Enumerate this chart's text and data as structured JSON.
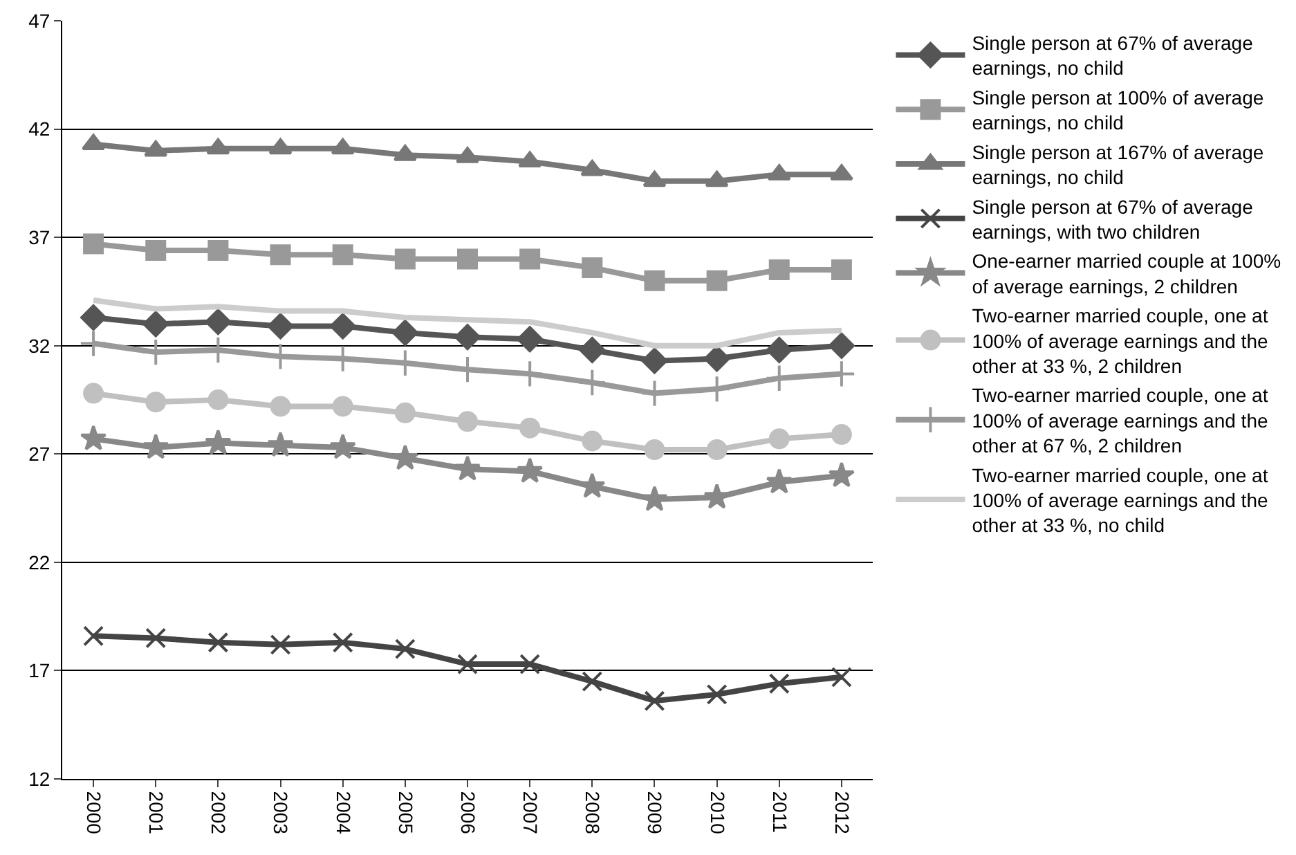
{
  "chart_data": {
    "type": "line",
    "categories": [
      "2000",
      "2001",
      "2002",
      "2003",
      "2004",
      "2005",
      "2006",
      "2007",
      "2008",
      "2009",
      "2010",
      "2011",
      "2012"
    ],
    "ylim": [
      12,
      47
    ],
    "yticks": [
      12,
      17,
      22,
      27,
      32,
      37,
      42,
      47
    ],
    "grid": "y",
    "legend": "right",
    "series": [
      {
        "name": "Single person at 67% of average earnings, no child",
        "color": "#555555",
        "marker": "diamond",
        "values": [
          33.3,
          33.0,
          33.1,
          32.9,
          32.9,
          32.6,
          32.4,
          32.3,
          31.8,
          31.3,
          31.4,
          31.8,
          32.0
        ]
      },
      {
        "name": "Single person at 100% of average earnings, no child",
        "color": "#999999",
        "marker": "square",
        "values": [
          36.7,
          36.4,
          36.4,
          36.2,
          36.2,
          36.0,
          36.0,
          36.0,
          35.6,
          35.0,
          35.0,
          35.5,
          35.5
        ]
      },
      {
        "name": "Single person at 167% of average earnings, no child",
        "color": "#777777",
        "marker": "triangle",
        "values": [
          41.3,
          41.0,
          41.1,
          41.1,
          41.1,
          40.8,
          40.7,
          40.5,
          40.1,
          39.6,
          39.6,
          39.9,
          39.9
        ]
      },
      {
        "name": "Single person at 67% of average earnings, with two children",
        "color": "#444444",
        "marker": "x",
        "values": [
          18.6,
          18.5,
          18.3,
          18.2,
          18.3,
          18.0,
          17.3,
          17.3,
          16.5,
          15.6,
          15.9,
          16.4,
          16.7
        ]
      },
      {
        "name": "One-earner married couple at 100% of average earnings, 2 children",
        "color": "#888888",
        "marker": "star",
        "values": [
          27.7,
          27.3,
          27.5,
          27.4,
          27.3,
          26.8,
          26.3,
          26.2,
          25.5,
          24.9,
          25.0,
          25.7,
          26.0
        ]
      },
      {
        "name": "Two-earner married couple, one at 100% of average earnings and the other at 33 %, 2 children",
        "color": "#c0c0c0",
        "marker": "circle",
        "values": [
          29.8,
          29.4,
          29.5,
          29.2,
          29.2,
          28.9,
          28.5,
          28.2,
          27.6,
          27.2,
          27.2,
          27.7,
          27.9
        ]
      },
      {
        "name": "Two-earner married couple, one at 100% of average earnings and the other at 67 %, 2 children",
        "color": "#999999",
        "marker": "cross",
        "values": [
          32.1,
          31.7,
          31.8,
          31.5,
          31.4,
          31.2,
          30.9,
          30.7,
          30.3,
          29.8,
          30.0,
          30.5,
          30.7
        ]
      },
      {
        "name": "Two-earner married couple, one at 100% of average earnings and the other at 33 %, no child",
        "color": "#cccccc",
        "marker": "none",
        "values": [
          34.1,
          33.7,
          33.8,
          33.6,
          33.6,
          33.3,
          33.2,
          33.1,
          32.6,
          32.0,
          32.0,
          32.6,
          32.7
        ]
      }
    ]
  }
}
